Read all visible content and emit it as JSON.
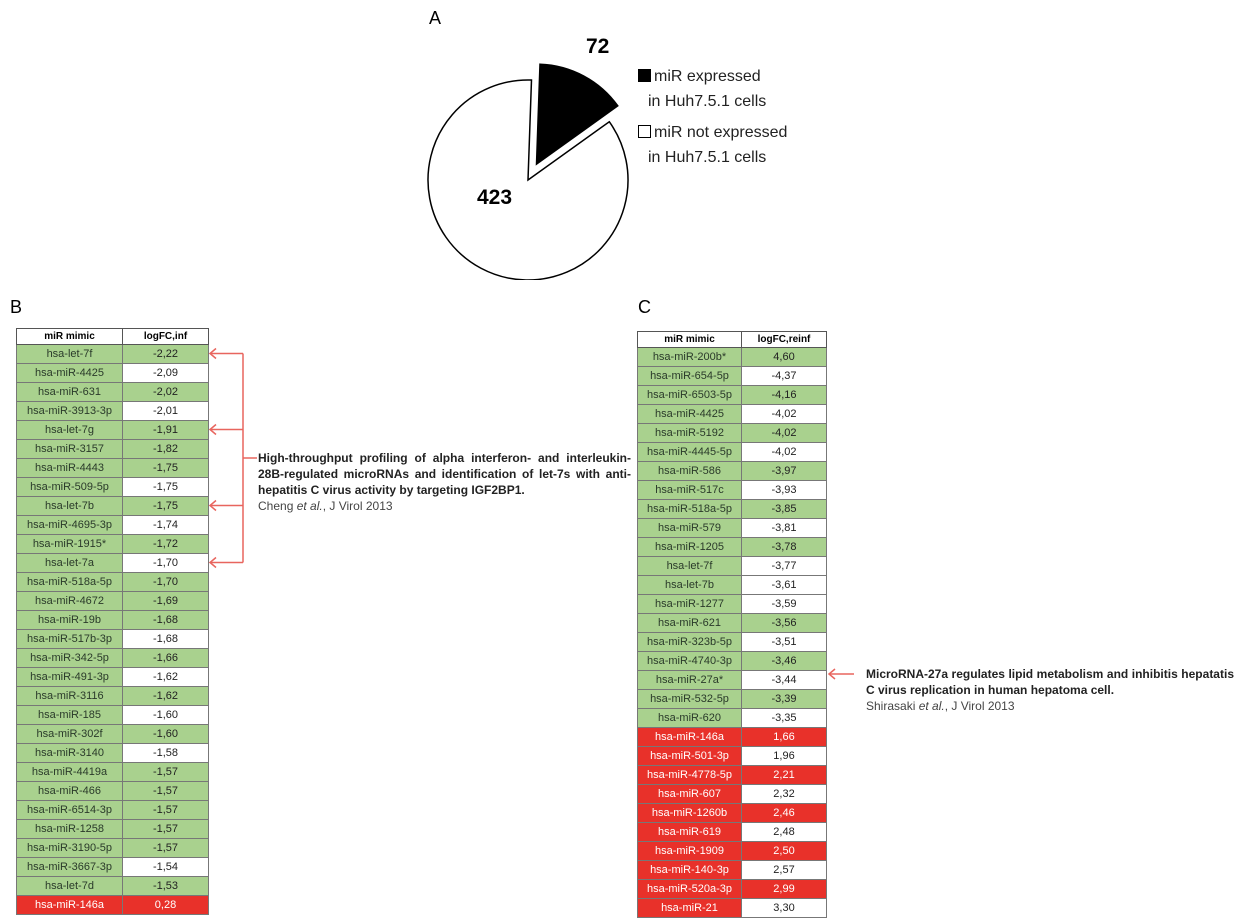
{
  "panels": {
    "a": "A",
    "b": "B",
    "c": "C"
  },
  "chart_data": [
    {
      "type": "pie",
      "slices": [
        {
          "label": "miR expressed in Huh7.5.1 cells",
          "value": 72,
          "color": "#000000"
        },
        {
          "label": "miR not expressed in Huh7.5.1 cells",
          "value": 423,
          "color": "#ffffff"
        }
      ],
      "data_labels": [
        "72",
        "423"
      ],
      "legend": {
        "position": "right",
        "items": [
          {
            "line1": "miR expressed",
            "line2": "in Huh7.5.1 cells"
          },
          {
            "line1": "miR not expressed",
            "line2": "in Huh7.5.1 cells"
          }
        ]
      }
    },
    {
      "type": "table",
      "columns": [
        "miR mimic",
        "logFC,inf"
      ],
      "rows": [
        {
          "mir": "hsa-let-7f",
          "value": "-2,22",
          "color": "green"
        },
        {
          "mir": "hsa-miR-4425",
          "value": "-2,09",
          "color": "green"
        },
        {
          "mir": "hsa-miR-631",
          "value": "-2,02",
          "color": "green"
        },
        {
          "mir": "hsa-miR-3913-3p",
          "value": "-2,01",
          "color": "green"
        },
        {
          "mir": "hsa-let-7g",
          "value": "-1,91",
          "color": "green"
        },
        {
          "mir": "hsa-miR-3157",
          "value": "-1,82",
          "color": "green"
        },
        {
          "mir": "hsa-miR-4443",
          "value": "-1,75",
          "color": "green"
        },
        {
          "mir": "hsa-miR-509-5p",
          "value": "-1,75",
          "color": "green"
        },
        {
          "mir": "hsa-let-7b",
          "value": "-1,75",
          "color": "green"
        },
        {
          "mir": "hsa-miR-4695-3p",
          "value": "-1,74",
          "color": "green"
        },
        {
          "mir": "hsa-miR-1915*",
          "value": "-1,72",
          "color": "green"
        },
        {
          "mir": "hsa-let-7a",
          "value": "-1,70",
          "color": "green"
        },
        {
          "mir": "hsa-miR-518a-5p",
          "value": "-1,70",
          "color": "green"
        },
        {
          "mir": "hsa-miR-4672",
          "value": "-1,69",
          "color": "green"
        },
        {
          "mir": "hsa-miR-19b",
          "value": "-1,68",
          "color": "green"
        },
        {
          "mir": "hsa-miR-517b-3p",
          "value": "-1,68",
          "color": "green"
        },
        {
          "mir": "hsa-miR-342-5p",
          "value": "-1,66",
          "color": "green"
        },
        {
          "mir": "hsa-miR-491-3p",
          "value": "-1,62",
          "color": "green"
        },
        {
          "mir": "hsa-miR-3116",
          "value": "-1,62",
          "color": "green"
        },
        {
          "mir": "hsa-miR-185",
          "value": "-1,60",
          "color": "green"
        },
        {
          "mir": "hsa-miR-302f",
          "value": "-1,60",
          "color": "green"
        },
        {
          "mir": "hsa-miR-3140",
          "value": "-1,58",
          "color": "green"
        },
        {
          "mir": "hsa-miR-4419a",
          "value": "-1,57",
          "color": "green"
        },
        {
          "mir": "hsa-miR-466",
          "value": "-1,57",
          "color": "green"
        },
        {
          "mir": "hsa-miR-6514-3p",
          "value": "-1,57",
          "color": "green"
        },
        {
          "mir": "hsa-miR-1258",
          "value": "-1,57",
          "color": "green"
        },
        {
          "mir": "hsa-miR-3190-5p",
          "value": "-1,57",
          "color": "green"
        },
        {
          "mir": "hsa-miR-3667-3p",
          "value": "-1,54",
          "color": "green"
        },
        {
          "mir": "hsa-let-7d",
          "value": "-1,53",
          "color": "green"
        },
        {
          "mir": "hsa-miR-146a",
          "value": "0,28",
          "color": "red"
        }
      ],
      "value_cell_colors": [
        "green",
        "white",
        "green",
        "white",
        "green",
        "green",
        "green",
        "white",
        "green",
        "white",
        "green",
        "white",
        "green",
        "green",
        "green",
        "white",
        "green",
        "white",
        "green",
        "white",
        "green",
        "white",
        "green",
        "green",
        "green",
        "green",
        "green",
        "white",
        "green",
        "red"
      ]
    },
    {
      "type": "table",
      "columns": [
        "miR mimic",
        "logFC,reinf"
      ],
      "rows": [
        {
          "mir": "hsa-miR-200b*",
          "value": "4,60",
          "color": "green"
        },
        {
          "mir": "hsa-miR-654-5p",
          "value": "-4,37",
          "color": "green"
        },
        {
          "mir": "hsa-miR-6503-5p",
          "value": "-4,16",
          "color": "green"
        },
        {
          "mir": "hsa-miR-4425",
          "value": "-4,02",
          "color": "green"
        },
        {
          "mir": "hsa-miR-5192",
          "value": "-4,02",
          "color": "green"
        },
        {
          "mir": "hsa-miR-4445-5p",
          "value": "-4,02",
          "color": "green"
        },
        {
          "mir": "hsa-miR-586",
          "value": "-3,97",
          "color": "green"
        },
        {
          "mir": "hsa-miR-517c",
          "value": "-3,93",
          "color": "green"
        },
        {
          "mir": "hsa-miR-518a-5p",
          "value": "-3,85",
          "color": "green"
        },
        {
          "mir": "hsa-miR-579",
          "value": "-3,81",
          "color": "green"
        },
        {
          "mir": "hsa-miR-1205",
          "value": "-3,78",
          "color": "green"
        },
        {
          "mir": "hsa-let-7f",
          "value": "-3,77",
          "color": "green"
        },
        {
          "mir": "hsa-let-7b",
          "value": "-3,61",
          "color": "green"
        },
        {
          "mir": "hsa-miR-1277",
          "value": "-3,59",
          "color": "green"
        },
        {
          "mir": "hsa-miR-621",
          "value": "-3,56",
          "color": "green"
        },
        {
          "mir": "hsa-miR-323b-5p",
          "value": "-3,51",
          "color": "green"
        },
        {
          "mir": "hsa-miR-4740-3p",
          "value": "-3,46",
          "color": "green"
        },
        {
          "mir": "hsa-miR-27a*",
          "value": "-3,44",
          "color": "green"
        },
        {
          "mir": "hsa-miR-532-5p",
          "value": "-3,39",
          "color": "green"
        },
        {
          "mir": "hsa-miR-620",
          "value": "-3,35",
          "color": "green"
        },
        {
          "mir": "hsa-miR-146a",
          "value": "1,66",
          "color": "red"
        },
        {
          "mir": "hsa-miR-501-3p",
          "value": "1,96",
          "color": "red"
        },
        {
          "mir": "hsa-miR-4778-5p",
          "value": "2,21",
          "color": "red"
        },
        {
          "mir": "hsa-miR-607",
          "value": "2,32",
          "color": "red"
        },
        {
          "mir": "hsa-miR-1260b",
          "value": "2,46",
          "color": "red"
        },
        {
          "mir": "hsa-miR-619",
          "value": "2,48",
          "color": "red"
        },
        {
          "mir": "hsa-miR-1909",
          "value": "2,50",
          "color": "red"
        },
        {
          "mir": "hsa-miR-140-3p",
          "value": "2,57",
          "color": "red"
        },
        {
          "mir": "hsa-miR-520a-3p",
          "value": "2,99",
          "color": "red"
        },
        {
          "mir": "hsa-miR-21",
          "value": "3,30",
          "color": "red"
        }
      ],
      "value_cell_colors": [
        "green",
        "white",
        "green",
        "white",
        "green",
        "white",
        "green",
        "white",
        "green",
        "white",
        "green",
        "white",
        "white",
        "white",
        "green",
        "white",
        "green",
        "white",
        "green",
        "white",
        "red",
        "white",
        "red",
        "white",
        "red",
        "white",
        "red",
        "white",
        "red",
        "white"
      ]
    }
  ],
  "annotations": {
    "b": {
      "title": "High-throughput profiling of alpha interferon- and interleukin-28B-regulated microRNAs and identification of let-7s with anti-hepatitis C virus activity by targeting IGF2BP1.",
      "cite_prefix": "Cheng ",
      "cite_etal": "et al.",
      "cite_suffix": ", J Virol 2013"
    },
    "c": {
      "title": "MicroRNA-27a regulates lipid metabolism and inhibitis hepatatis C virus replication in human hepatoma cell.",
      "cite_prefix": "Shirasaki ",
      "cite_etal": "et al.",
      "cite_suffix": ", J Virol 2013"
    }
  },
  "colors": {
    "green": "#a9d18e",
    "red": "#e8312a",
    "arrow": "#e8655e"
  }
}
